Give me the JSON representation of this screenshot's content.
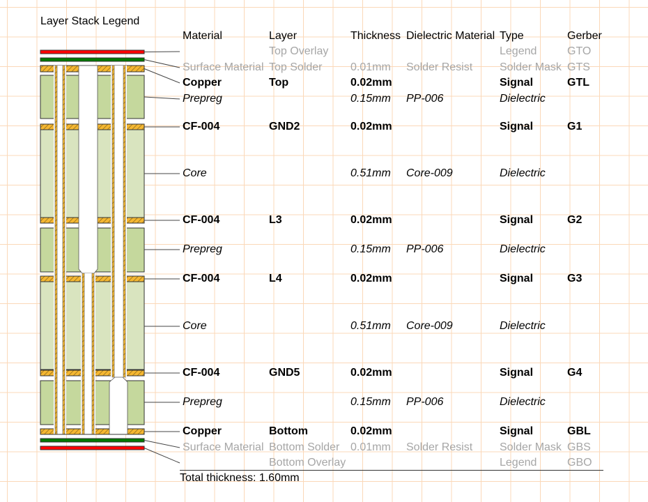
{
  "title": "Layer Stack Legend",
  "headers": [
    "Material",
    "Layer",
    "Thickness",
    "Dielectric Material",
    "Type",
    "Gerber"
  ],
  "rows": [
    {
      "kind": "muted",
      "cells": [
        "",
        "Top Overlay",
        "",
        "",
        "Legend",
        "GTO"
      ]
    },
    {
      "kind": "muted",
      "cells": [
        "Surface Material",
        "Top Solder",
        "0.01mm",
        "Solder Resist",
        "Solder Mask",
        "GTS"
      ]
    },
    {
      "kind": "bold",
      "cells": [
        "Copper",
        "Top",
        "0.02mm",
        "",
        "Signal",
        "GTL"
      ]
    },
    {
      "kind": "italic",
      "cells": [
        "Prepreg",
        "",
        "0.15mm",
        "PP-006",
        "Dielectric",
        ""
      ]
    },
    {
      "kind": "bold",
      "cells": [
        "CF-004",
        "GND2",
        "0.02mm",
        "",
        "Signal",
        "G1"
      ]
    },
    {
      "kind": "italic",
      "cells": [
        "Core",
        "",
        "0.51mm",
        "Core-009",
        "Dielectric",
        ""
      ]
    },
    {
      "kind": "bold",
      "cells": [
        "CF-004",
        "L3",
        "0.02mm",
        "",
        "Signal",
        "G2"
      ]
    },
    {
      "kind": "italic",
      "cells": [
        "Prepreg",
        "",
        "0.15mm",
        "PP-006",
        "Dielectric",
        ""
      ]
    },
    {
      "kind": "bold",
      "cells": [
        "CF-004",
        "L4",
        "0.02mm",
        "",
        "Signal",
        "G3"
      ]
    },
    {
      "kind": "italic",
      "cells": [
        "Core",
        "",
        "0.51mm",
        "Core-009",
        "Dielectric",
        ""
      ]
    },
    {
      "kind": "bold",
      "cells": [
        "CF-004",
        "GND5",
        "0.02mm",
        "",
        "Signal",
        "G4"
      ]
    },
    {
      "kind": "italic",
      "cells": [
        "Prepreg",
        "",
        "0.15mm",
        "PP-006",
        "Dielectric",
        ""
      ]
    },
    {
      "kind": "bold",
      "cells": [
        "Copper",
        "Bottom",
        "0.02mm",
        "",
        "Signal",
        "GBL"
      ]
    },
    {
      "kind": "muted",
      "cells": [
        "Surface Material",
        "Bottom Solder",
        "0.01mm",
        "Solder Resist",
        "Solder Mask",
        "GBS"
      ]
    },
    {
      "kind": "muted",
      "cells": [
        "",
        "Bottom Overlay",
        "",
        "",
        "Legend",
        "GBO"
      ]
    }
  ],
  "total_thickness": "Total thickness: 1.60mm",
  "colors": {
    "overlay": "#ff0000",
    "solder_mask": "#007a00",
    "copper": "#f5b731",
    "prepreg": "#c5d89d",
    "core": "#d9e4bf",
    "grid": "#fbd8b8"
  }
}
